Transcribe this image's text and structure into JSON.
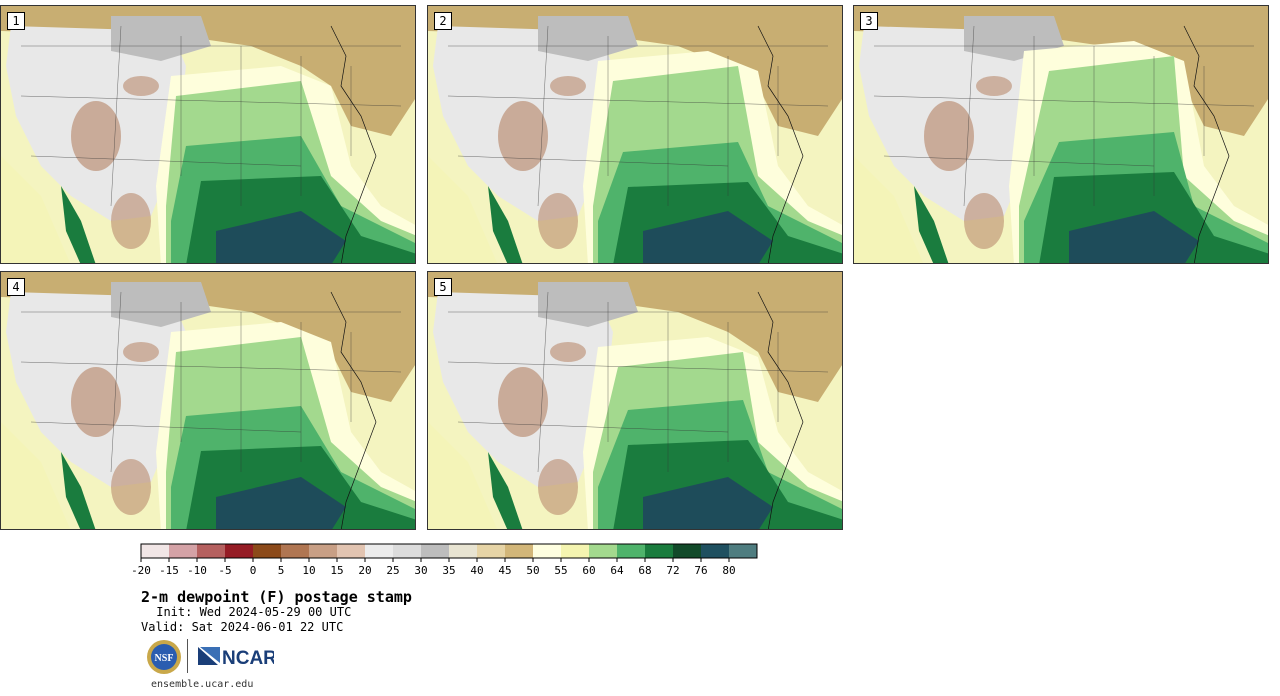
{
  "title": "2-m dewpoint (F) postage stamp",
  "init": " Init: Wed 2024-05-29 00 UTC",
  "valid": "Valid: Sat 2024-06-01 22 UTC",
  "site": "ensemble.ucar.edu",
  "logos": {
    "nsf": "NSF",
    "ncar": "NCAR"
  },
  "members": [
    "1",
    "2",
    "3",
    "4",
    "5"
  ],
  "colorbar": {
    "colors": [
      "#f1e6e6",
      "#d4a2a6",
      "#b5605f",
      "#951c25",
      "#8c4a1a",
      "#b07652",
      "#c89f85",
      "#e2c4b1",
      "#ececec",
      "#dcdcdc",
      "#bdbdbd",
      "#e8e4d2",
      "#e6d4a6",
      "#d2b679",
      "#fefee0",
      "#f4f4b0",
      "#a3d98e",
      "#4fb36b",
      "#1a7c3e",
      "#124a2a",
      "#1f5060",
      "#4f7d80"
    ],
    "ticks": [
      "-20",
      "-15",
      "-10",
      "-5",
      "0",
      "5",
      "10",
      "15",
      "20",
      "25",
      "30",
      "35",
      "40",
      "45",
      "50",
      "55",
      "60",
      "64",
      "68",
      "72",
      "76",
      "80"
    ],
    "unit": "F"
  },
  "map_colors": {
    "ocean_pacific": "#f4f4b8",
    "ocean_atlantic": "#f4f4c0",
    "gulf": "#1e4c5a",
    "dry_north": "#c8ae72",
    "grey_plains": "#bdbdbd",
    "light_west": "#e8e8e8",
    "brown_mtn": "#b98a6e",
    "moist_light": "#a3d98e",
    "moist_mid": "#4fb36b",
    "moist_dark": "#1a7c3e",
    "moist_deep": "#124a2a",
    "pale_yellow": "#fefedc"
  }
}
